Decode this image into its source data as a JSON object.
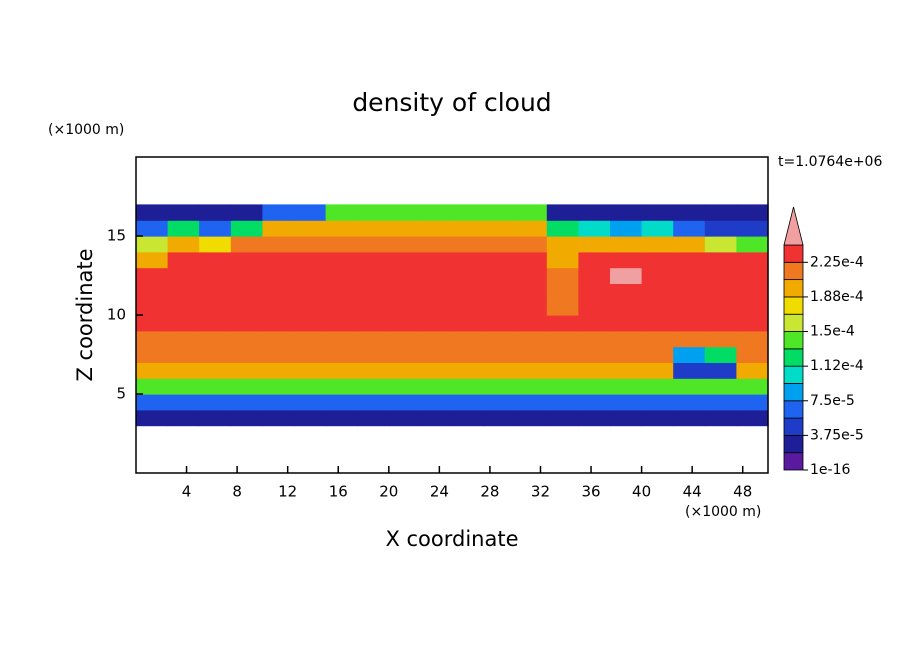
{
  "chart_data": {
    "type": "contour",
    "title": "density of cloud",
    "xlabel": "X coordinate",
    "ylabel": "Z coordinate",
    "x_unit": "(×1000 m)",
    "y_unit": "(×1000 m)",
    "annotation": "t=1.0764e+06",
    "xlim": [
      0,
      50
    ],
    "ylim": [
      0,
      20
    ],
    "xticks": [
      4,
      8,
      12,
      16,
      20,
      24,
      28,
      32,
      36,
      40,
      44,
      48
    ],
    "yticks": [
      5,
      10,
      15
    ],
    "xbins": [
      0,
      2.5,
      5,
      7.5,
      10,
      12.5,
      15,
      17.5,
      20,
      22.5,
      25,
      27.5,
      30,
      32.5,
      35,
      37.5,
      40,
      42.5,
      45,
      47.5,
      50
    ],
    "ybins": [
      3,
      4,
      5,
      6,
      7,
      8,
      9,
      10,
      11,
      12,
      13,
      14,
      15,
      16,
      17
    ],
    "values": [
      [
        2e-05,
        2e-05,
        2e-05,
        2e-05,
        2e-05,
        2e-05,
        2e-05,
        2e-05,
        2e-05,
        2e-05,
        2e-05,
        2e-05,
        2e-05,
        2e-05,
        2e-05,
        2e-05,
        2e-05,
        2e-05,
        2e-05,
        2e-05
      ],
      [
        6e-05,
        6e-05,
        6e-05,
        6e-05,
        6e-05,
        6e-05,
        6e-05,
        6e-05,
        6e-05,
        6e-05,
        6e-05,
        6e-05,
        6e-05,
        6e-05,
        6e-05,
        6e-05,
        6e-05,
        6e-05,
        6e-05,
        6e-05
      ],
      [
        0.000135,
        0.000135,
        0.000135,
        0.000135,
        0.000135,
        0.000135,
        0.000135,
        0.000135,
        0.000135,
        0.000135,
        0.000135,
        0.000135,
        0.000135,
        0.000135,
        0.000135,
        0.000135,
        0.000135,
        0.000135,
        0.000135,
        0.000135
      ],
      [
        0.00019,
        0.00019,
        0.00019,
        0.00019,
        0.00019,
        0.00019,
        0.00019,
        0.00019,
        0.00019,
        0.00019,
        0.00019,
        0.00019,
        0.00019,
        0.00019,
        0.00019,
        0.00019,
        0.00019,
        5e-05,
        5e-05,
        0.00019
      ],
      [
        0.00021,
        0.00021,
        0.00021,
        0.00021,
        0.00021,
        0.00021,
        0.00021,
        0.00021,
        0.00021,
        0.00021,
        0.00021,
        0.00021,
        0.00021,
        0.00021,
        0.00021,
        0.00021,
        0.00021,
        8e-05,
        0.00012,
        0.00021
      ],
      [
        0.00022,
        0.00022,
        0.00022,
        0.00022,
        0.00022,
        0.00022,
        0.00022,
        0.00022,
        0.00022,
        0.00022,
        0.00022,
        0.00022,
        0.00022,
        0.00022,
        0.00022,
        0.00022,
        0.00022,
        0.00022,
        0.00022,
        0.00022
      ],
      [
        0.00023,
        0.00023,
        0.00023,
        0.00023,
        0.00023,
        0.00023,
        0.00023,
        0.00023,
        0.00023,
        0.00023,
        0.00023,
        0.00023,
        0.00023,
        0.00023,
        0.00023,
        0.00023,
        0.00023,
        0.00023,
        0.00023,
        0.00023
      ],
      [
        0.000235,
        0.000235,
        0.000235,
        0.000235,
        0.000235,
        0.000235,
        0.000235,
        0.000235,
        0.000235,
        0.000235,
        0.000235,
        0.000235,
        0.000235,
        0.00021,
        0.000235,
        0.000235,
        0.000235,
        0.000235,
        0.000235,
        0.000235
      ],
      [
        0.000235,
        0.000235,
        0.000235,
        0.000235,
        0.000235,
        0.000235,
        0.000235,
        0.000235,
        0.000235,
        0.000235,
        0.000235,
        0.000235,
        0.000235,
        0.00021,
        0.000235,
        0.000235,
        0.000235,
        0.000235,
        0.000235,
        0.000235
      ],
      [
        0.000235,
        0.000235,
        0.000235,
        0.000235,
        0.000235,
        0.000235,
        0.000235,
        0.000235,
        0.000235,
        0.000235,
        0.000235,
        0.000235,
        0.000235,
        0.00021,
        0.000235,
        0.00027,
        0.000235,
        0.000235,
        0.000235,
        0.000235
      ],
      [
        0.0002,
        0.00023,
        0.00023,
        0.00023,
        0.00023,
        0.00023,
        0.00023,
        0.00023,
        0.00023,
        0.00023,
        0.00023,
        0.00023,
        0.00023,
        0.00019,
        0.00023,
        0.00023,
        0.00023,
        0.00023,
        0.00023,
        0.00023
      ],
      [
        0.00015,
        0.00019,
        0.00018,
        0.00022,
        0.00022,
        0.00022,
        0.00022,
        0.00022,
        0.00022,
        0.00022,
        0.00022,
        0.00022,
        0.00022,
        0.00019,
        0.0002,
        0.0002,
        0.0002,
        0.0002,
        0.00016,
        0.00014
      ],
      [
        7e-05,
        0.00012,
        6e-05,
        0.00013,
        0.00019,
        0.0002,
        0.0002,
        0.0002,
        0.0002,
        0.0002,
        0.0002,
        0.0002,
        0.0002,
        0.00013,
        0.0001,
        8e-05,
        0.00011,
        7e-05,
        5e-05,
        5e-05
      ],
      [
        2e-05,
        2e-05,
        2e-05,
        2e-05,
        6e-05,
        6e-05,
        0.00014,
        0.00014,
        0.00014,
        0.00014,
        0.00014,
        0.00014,
        0.00014,
        2e-05,
        2e-05,
        2e-05,
        2e-05,
        2e-05,
        2e-05,
        2e-05
      ]
    ],
    "levels": [
      1e-16,
      1.875e-05,
      3.75e-05,
      5.625e-05,
      7.5e-05,
      9.375e-05,
      0.0001125,
      0.00013125,
      0.00015,
      0.00016875,
      0.0001875,
      0.00020625,
      0.000225,
      0.00024375
    ],
    "colors": [
      "#5a1aa0",
      "#1e1e96",
      "#1e3cc8",
      "#1e64f0",
      "#00a0f0",
      "#00dcc8",
      "#00dc64",
      "#50e628",
      "#c8e632",
      "#f0dc00",
      "#f0aa00",
      "#f07820",
      "#f03232",
      "#f0a0a0"
    ],
    "cbar_ticks": [
      1e-16,
      {
        "value": 3.75e-05,
        "label": "3.75e-5"
      },
      {
        "value": 7.5e-05,
        "label": "7.5e-5"
      },
      {
        "value": 0.0001125,
        "label": "1.12e-4"
      },
      {
        "value": 0.00015,
        "label": "1.5e-4"
      },
      {
        "value": 0.0001875,
        "label": "1.88e-4"
      },
      {
        "value": 0.000225,
        "label": "2.25e-4"
      }
    ]
  }
}
